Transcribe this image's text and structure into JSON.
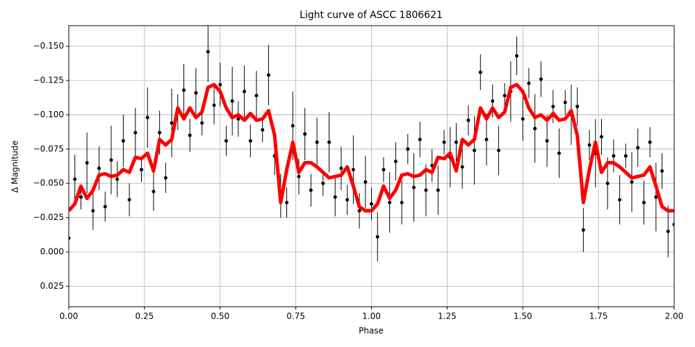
{
  "chart_data": {
    "type": "scatter",
    "title": "Light curve of ASCC 1806621",
    "x_label": "Phase",
    "y_label": "Δ Magnitude",
    "xlim": [
      0,
      2
    ],
    "ylim": [
      0.04,
      -0.165
    ],
    "xticks": [
      {
        "value": 0,
        "label": "0.00"
      },
      0.25,
      {
        "value": 0.5,
        "label": "0.50"
      },
      0.75,
      {
        "value": 1,
        "label": "1.00"
      },
      1.25,
      {
        "value": 1.5,
        "label": "1.50"
      },
      1.75,
      {
        "value": 2,
        "label": "2.00"
      }
    ],
    "yticks": [
      {
        "value": -0.15,
        "label": "−0.150"
      },
      {
        "value": -0.125,
        "label": "−0.125"
      },
      {
        "value": -0.1,
        "label": "−0.100"
      },
      {
        "value": -0.075,
        "label": "−0.075"
      },
      {
        "value": -0.05,
        "label": "−0.050"
      },
      {
        "value": -0.025,
        "label": "−0.025"
      },
      {
        "value": 0,
        "label": "0.000"
      },
      0.025
    ],
    "grid": true,
    "series": [
      {
        "color": "#000000",
        "x": [
          0,
          0.02,
          0.04,
          0.06,
          0.08,
          0.1,
          0.12,
          0.14,
          0.16,
          0.18,
          0.2,
          0.22,
          0.24,
          0.26,
          0.28,
          0.3,
          0.32,
          0.34,
          0.36,
          0.38,
          0.4,
          0.42,
          0.44,
          0.46,
          0.48,
          0.5,
          0.52,
          0.54,
          0.56,
          0.58,
          0.6,
          0.62,
          0.64,
          0.66,
          0.68,
          0.7,
          0.72,
          0.74,
          0.76,
          0.78,
          0.8,
          0.82,
          0.84,
          0.86,
          0.88,
          0.9,
          0.92,
          0.94,
          0.96,
          0.98,
          1,
          1.02,
          1.04,
          1.06,
          1.08,
          1.1,
          1.12,
          1.14,
          1.16,
          1.18,
          1.2,
          1.22,
          1.24,
          1.26,
          1.28,
          1.3,
          1.32,
          1.34,
          1.36,
          1.38,
          1.4,
          1.42,
          1.44,
          1.46,
          1.48,
          1.5,
          1.52,
          1.54,
          1.56,
          1.58,
          1.6,
          1.62,
          1.64,
          1.66,
          1.68,
          1.7,
          1.72,
          1.74,
          1.76,
          1.78,
          1.8,
          1.82,
          1.84,
          1.86,
          1.88,
          1.9,
          1.92,
          1.94,
          1.96,
          1.98,
          2
        ],
        "values": [
          -0.01,
          -0.053,
          -0.04,
          -0.065,
          -0.03,
          -0.061,
          -0.033,
          -0.067,
          -0.053,
          -0.081,
          -0.038,
          -0.087,
          -0.06,
          -0.098,
          -0.044,
          -0.087,
          -0.054,
          -0.094,
          -0.102,
          -0.118,
          -0.085,
          -0.116,
          -0.094,
          -0.146,
          -0.107,
          -0.122,
          -0.081,
          -0.11,
          -0.097,
          -0.117,
          -0.081,
          -0.114,
          -0.089,
          -0.129,
          -0.07,
          -0.041,
          -0.036,
          -0.092,
          -0.055,
          -0.086,
          -0.045,
          -0.08,
          -0.05,
          -0.08,
          -0.04,
          -0.061,
          -0.038,
          -0.06,
          -0.03,
          -0.051,
          -0.035,
          -0.011,
          -0.06,
          -0.036,
          -0.066,
          -0.036,
          -0.075,
          -0.047,
          -0.082,
          -0.045,
          -0.063,
          -0.045,
          -0.08,
          -0.069,
          -0.08,
          -0.062,
          -0.096,
          -0.074,
          -0.131,
          -0.082,
          -0.11,
          -0.074,
          -0.114,
          -0.117,
          -0.143,
          -0.097,
          -0.123,
          -0.09,
          -0.126,
          -0.081,
          -0.106,
          -0.072,
          -0.109,
          -0.1,
          -0.106,
          -0.016,
          -0.078,
          -0.072,
          -0.084,
          -0.05,
          -0.07,
          -0.038,
          -0.07,
          -0.051,
          -0.076,
          -0.036,
          -0.08,
          -0.04,
          -0.059,
          -0.015,
          -0.02
        ],
        "errors": [
          0.012,
          0.018,
          0.009,
          0.022,
          0.014,
          0.016,
          0.011,
          0.025,
          0.013,
          0.019,
          0.012,
          0.018,
          0.009,
          0.022,
          0.014,
          0.016,
          0.011,
          0.025,
          0.013,
          0.019,
          0.012,
          0.018,
          0.009,
          0.022,
          0.014,
          0.016,
          0.011,
          0.025,
          0.013,
          0.019,
          0.012,
          0.018,
          0.009,
          0.022,
          0.014,
          0.016,
          0.011,
          0.025,
          0.013,
          0.019,
          0.012,
          0.018,
          0.009,
          0.022,
          0.014,
          0.016,
          0.011,
          0.025,
          0.013,
          0.019,
          0.012,
          0.018,
          0.009,
          0.022,
          0.014,
          0.016,
          0.011,
          0.025,
          0.013,
          0.019,
          0.012,
          0.018,
          0.009,
          0.022,
          0.014,
          0.016,
          0.011,
          0.025,
          0.013,
          0.019,
          0.012,
          0.018,
          0.009,
          0.022,
          0.014,
          0.016,
          0.011,
          0.025,
          0.013,
          0.019,
          0.012,
          0.018,
          0.009,
          0.022,
          0.014,
          0.016,
          0.011,
          0.025,
          0.013,
          0.019,
          0.012,
          0.018,
          0.009,
          0.022,
          0.014,
          0.016,
          0.011,
          0.025,
          0.013,
          0.019,
          0.015
        ]
      },
      {
        "color": "#ff0000",
        "x": [
          0,
          0.02,
          0.04,
          0.06,
          0.08,
          0.1,
          0.12,
          0.14,
          0.16,
          0.18,
          0.2,
          0.22,
          0.24,
          0.26,
          0.28,
          0.3,
          0.32,
          0.34,
          0.36,
          0.38,
          0.4,
          0.42,
          0.44,
          0.46,
          0.48,
          0.5,
          0.52,
          0.54,
          0.56,
          0.58,
          0.6,
          0.62,
          0.64,
          0.66,
          0.68,
          0.7,
          0.72,
          0.74,
          0.76,
          0.78,
          0.8,
          0.82,
          0.84,
          0.86,
          0.88,
          0.9,
          0.92,
          0.94,
          0.96,
          0.98,
          1,
          1.02,
          1.04,
          1.06,
          1.08,
          1.1,
          1.12,
          1.14,
          1.16,
          1.18,
          1.2,
          1.22,
          1.24,
          1.26,
          1.28,
          1.3,
          1.32,
          1.34,
          1.36,
          1.38,
          1.4,
          1.42,
          1.44,
          1.46,
          1.48,
          1.5,
          1.52,
          1.54,
          1.56,
          1.58,
          1.6,
          1.62,
          1.64,
          1.66,
          1.68,
          1.7,
          1.72,
          1.74,
          1.76,
          1.78,
          1.8,
          1.82,
          1.84,
          1.86,
          1.88,
          1.9,
          1.92,
          1.94,
          1.96,
          1.98,
          2
        ],
        "values": [
          -0.03,
          -0.035,
          -0.048,
          -0.039,
          -0.045,
          -0.056,
          -0.057,
          -0.055,
          -0.056,
          -0.06,
          -0.058,
          -0.069,
          -0.068,
          -0.072,
          -0.059,
          -0.082,
          -0.078,
          -0.082,
          -0.105,
          -0.097,
          -0.105,
          -0.098,
          -0.102,
          -0.12,
          -0.122,
          -0.117,
          -0.105,
          -0.098,
          -0.1,
          -0.096,
          -0.101,
          -0.096,
          -0.097,
          -0.103,
          -0.085,
          -0.036,
          -0.06,
          -0.08,
          -0.058,
          -0.065,
          -0.065,
          -0.062,
          -0.058,
          -0.054,
          -0.055,
          -0.056,
          -0.062,
          -0.048,
          -0.033,
          -0.03,
          -0.03,
          -0.035,
          -0.048,
          -0.039,
          -0.045,
          -0.056,
          -0.057,
          -0.055,
          -0.056,
          -0.06,
          -0.058,
          -0.069,
          -0.068,
          -0.072,
          -0.059,
          -0.082,
          -0.078,
          -0.082,
          -0.105,
          -0.097,
          -0.105,
          -0.098,
          -0.102,
          -0.12,
          -0.122,
          -0.117,
          -0.105,
          -0.098,
          -0.1,
          -0.096,
          -0.101,
          -0.096,
          -0.097,
          -0.103,
          -0.085,
          -0.036,
          -0.06,
          -0.08,
          -0.058,
          -0.065,
          -0.065,
          -0.062,
          -0.058,
          -0.054,
          -0.055,
          -0.056,
          -0.062,
          -0.048,
          -0.033,
          -0.03,
          -0.03
        ]
      }
    ]
  }
}
